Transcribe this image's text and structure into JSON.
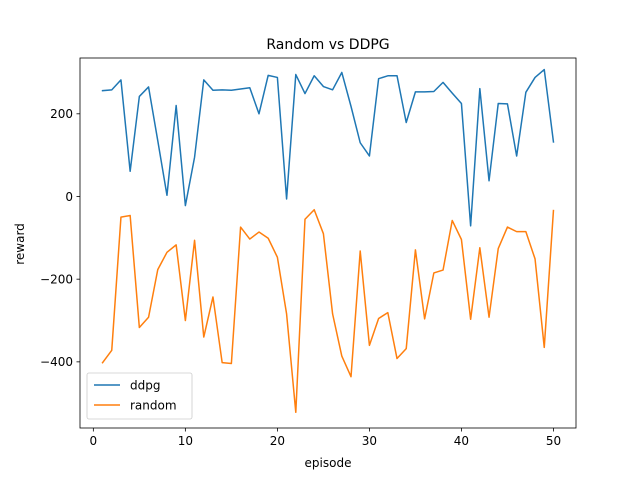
{
  "chart_data": {
    "type": "line",
    "title": "Random vs DDPG",
    "xlabel": "episode",
    "ylabel": "reward",
    "xlim": [
      -1.45,
      52.45
    ],
    "ylim": [
      -560,
      335
    ],
    "xticks": [
      0,
      10,
      20,
      30,
      40,
      50
    ],
    "yticks": [
      -400,
      -200,
      0,
      200
    ],
    "grid": false,
    "legend": "lower-left",
    "x": [
      1,
      2,
      3,
      4,
      5,
      6,
      7,
      8,
      9,
      10,
      11,
      12,
      13,
      14,
      15,
      16,
      17,
      18,
      19,
      20,
      21,
      22,
      23,
      24,
      25,
      26,
      27,
      28,
      29,
      30,
      31,
      32,
      33,
      34,
      35,
      36,
      37,
      38,
      39,
      40,
      41,
      42,
      43,
      44,
      45,
      46,
      47,
      48,
      49,
      50
    ],
    "series": [
      {
        "name": "ddpg",
        "color": "#1f77b4",
        "values": [
          256,
          258,
          282,
          61,
          242,
          265,
          135,
          3,
          220,
          -22,
          95,
          282,
          257,
          258,
          257,
          260,
          263,
          200,
          293,
          288,
          -6,
          295,
          249,
          292,
          266,
          258,
          300,
          218,
          130,
          98,
          285,
          292,
          292,
          179,
          253,
          253,
          254,
          276,
          250,
          225,
          -71,
          261,
          38,
          225,
          224,
          98,
          252,
          288,
          307,
          132
        ]
      },
      {
        "name": "random",
        "color": "#ff7f0e",
        "values": [
          -402,
          -372,
          -50,
          -46,
          -317,
          -292,
          -177,
          -135,
          -117,
          -300,
          -106,
          -340,
          -243,
          -402,
          -404,
          -74,
          -103,
          -86,
          -101,
          -147,
          -284,
          -522,
          -55,
          -32,
          -90,
          -284,
          -386,
          -436,
          -132,
          -360,
          -295,
          -281,
          -392,
          -368,
          -129,
          -296,
          -185,
          -178,
          -58,
          -104,
          -297,
          -124,
          -292,
          -126,
          -74,
          -85,
          -85,
          -151,
          -365,
          -34
        ]
      }
    ]
  }
}
